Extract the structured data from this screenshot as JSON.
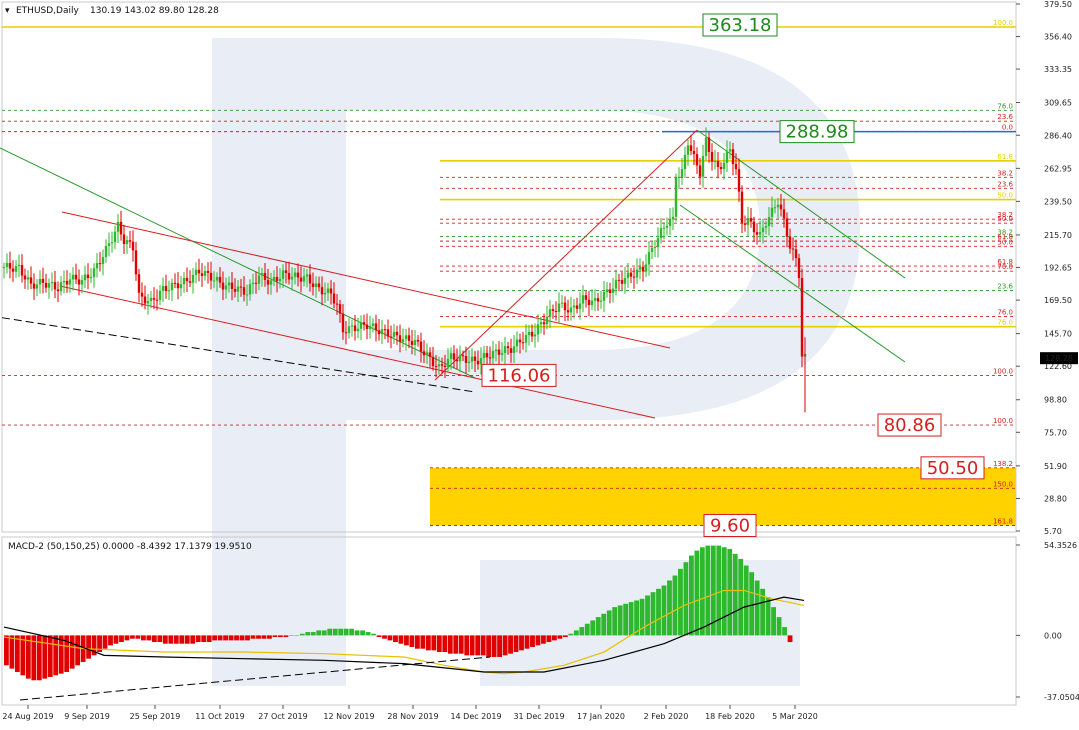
{
  "header": {
    "symbol": "ETHUSD,Daily",
    "ohlc": "130.19 143.02 89.80 128.28"
  },
  "macd_header": "MACD-2 (50,150,25) 0.0000 -8.4392 17.1379 19.9510",
  "current_price": "128.28",
  "colors": {
    "bull": "#2db82d",
    "bear": "#e00000",
    "fib_red": "#d42020",
    "fib_green": "#2a9a2a",
    "fib_yellow": "#e6d000",
    "target_box_fill": "#ffd200",
    "hline_blue": "#1a6fd1",
    "macd_signal": "#e8c000",
    "macd_line": "#000000",
    "watermark": "#e8edf6"
  },
  "chart_data": [
    {
      "type": "candlestick",
      "title": "",
      "y_axis": {
        "min": 5.7,
        "max": 379.5,
        "ticks": [
          "379.50",
          "356.40",
          "333.35",
          "309.65",
          "286.40",
          "262.95",
          "239.50",
          "215.70",
          "192.65",
          "169.50",
          "145.70",
          "122.60",
          "98.80",
          "75.70",
          "51.90",
          "28.80",
          "5.70"
        ]
      },
      "x_axis": {
        "labels": [
          "24 Aug 2019",
          "9 Sep 2019",
          "25 Sep 2019",
          "11 Oct 2019",
          "27 Oct 2019",
          "12 Nov 2019",
          "28 Nov 2019",
          "14 Dec 2019",
          "31 Dec 2019",
          "17 Jan 2020",
          "2 Feb 2020",
          "18 Feb 2020",
          "5 Mar 2020"
        ]
      },
      "price_path": [
        [
          0,
          193
        ],
        [
          5,
          192
        ],
        [
          9,
          180
        ],
        [
          13,
          182
        ],
        [
          18,
          178
        ],
        [
          22,
          185
        ],
        [
          26,
          183
        ],
        [
          30,
          190
        ],
        [
          34,
          205
        ],
        [
          38,
          222
        ],
        [
          40,
          212
        ],
        [
          43,
          207
        ],
        [
          45,
          172
        ],
        [
          49,
          168
        ],
        [
          53,
          177
        ],
        [
          57,
          180
        ],
        [
          61,
          183
        ],
        [
          65,
          190
        ],
        [
          69,
          186
        ],
        [
          73,
          180
        ],
        [
          77,
          178
        ],
        [
          81,
          175
        ],
        [
          85,
          187
        ],
        [
          89,
          182
        ],
        [
          93,
          188
        ],
        [
          97,
          186
        ],
        [
          101,
          185
        ],
        [
          105,
          177
        ],
        [
          109,
          174
        ],
        [
          111,
          166
        ],
        [
          113,
          148
        ],
        [
          117,
          150
        ],
        [
          121,
          152
        ],
        [
          125,
          148
        ],
        [
          129,
          145
        ],
        [
          133,
          142
        ],
        [
          137,
          140
        ],
        [
          141,
          130
        ],
        [
          145,
          121
        ],
        [
          149,
          129
        ],
        [
          153,
          128
        ],
        [
          157,
          126
        ],
        [
          161,
          130
        ],
        [
          165,
          133
        ],
        [
          169,
          135
        ],
        [
          173,
          142
        ],
        [
          177,
          147
        ],
        [
          181,
          158
        ],
        [
          185,
          166
        ],
        [
          189,
          162
        ],
        [
          193,
          170
        ],
        [
          197,
          168
        ],
        [
          201,
          175
        ],
        [
          205,
          183
        ],
        [
          209,
          187
        ],
        [
          213,
          192
        ],
        [
          217,
          210
        ],
        [
          221,
          225
        ],
        [
          223,
          226
        ],
        [
          224,
          258
        ],
        [
          226,
          260
        ],
        [
          228,
          282
        ],
        [
          230,
          270
        ],
        [
          232,
          260
        ],
        [
          234,
          282
        ],
        [
          236,
          270
        ],
        [
          238,
          262
        ],
        [
          240,
          268
        ],
        [
          242,
          276
        ],
        [
          244,
          262
        ],
        [
          246,
          225
        ],
        [
          248,
          226
        ],
        [
          250,
          220
        ],
        [
          252,
          215
        ],
        [
          254,
          225
        ],
        [
          256,
          232
        ],
        [
          258,
          240
        ],
        [
          260,
          225
        ],
        [
          262,
          208
        ],
        [
          264,
          198
        ],
        [
          265,
          188
        ],
        [
          266,
          130
        ],
        [
          267,
          128.28
        ]
      ],
      "annotated_prices": [
        {
          "label": "363.18",
          "color": "#1e8a1e"
        },
        {
          "label": "288.98",
          "color": "#1e8a1e"
        },
        {
          "label": "116.06",
          "color": "#d42020"
        },
        {
          "label": "80.86",
          "color": "#d42020"
        },
        {
          "label": "50.50",
          "color": "#d42020"
        },
        {
          "label": "9.60",
          "color": "#d42020"
        }
      ],
      "fibonacci_levels": [
        {
          "label": "100.0",
          "price": 363.18,
          "color": "#e6d000",
          "style": "solid"
        },
        {
          "label": "76.0",
          "price": 304.1,
          "color": "#2a9a2a",
          "style": "dashed"
        },
        {
          "label": "23.6",
          "price": 296.4,
          "color": "#d42020",
          "style": "dashed"
        },
        {
          "label": "0.0",
          "price": 288.98,
          "color": "#d42020",
          "style": "dashed"
        },
        {
          "label": "61.8",
          "price": 268.3,
          "color": "#e6d000",
          "style": "solid"
        },
        {
          "label": "38.2",
          "price": 256.6,
          "color": "#d42020",
          "style": "dashed"
        },
        {
          "label": "23.6",
          "price": 248.8,
          "color": "#d42020",
          "style": "dashed"
        },
        {
          "label": "50.0",
          "price": 240.8,
          "color": "#e6d000",
          "style": "solid"
        },
        {
          "label": "38.2",
          "price": 226.9,
          "color": "#d42020",
          "style": "dashed"
        },
        {
          "label": "50.0",
          "price": 224.0,
          "color": "#d42020",
          "style": "dashed"
        },
        {
          "label": "38.2",
          "price": 214.5,
          "color": "#2a9a2a",
          "style": "dashed"
        },
        {
          "label": "61.8",
          "price": 211.3,
          "color": "#d42020",
          "style": "dashed"
        },
        {
          "label": "50.0",
          "price": 207.6,
          "color": "#d42020",
          "style": "dashed"
        },
        {
          "label": "61.8",
          "price": 193.6,
          "color": "#d42020",
          "style": "dashed"
        },
        {
          "label": "76.0",
          "price": 190.0,
          "color": "#d42020",
          "style": "dashed"
        },
        {
          "label": "23.6",
          "price": 176.2,
          "color": "#2a9a2a",
          "style": "dashed"
        },
        {
          "label": "76.0",
          "price": 157.9,
          "color": "#d42020",
          "style": "dashed"
        },
        {
          "label": "76.0",
          "price": 150.6,
          "color": "#e6d000",
          "style": "solid"
        },
        {
          "label": "100.0",
          "price": 116.06,
          "color": "#d42020",
          "style": "dashed"
        },
        {
          "label": "100.0",
          "price": 80.86,
          "color": "#d42020",
          "style": "dashed"
        },
        {
          "label": "138.2",
          "price": 50.5,
          "color": "#d42020",
          "style": "dashed"
        },
        {
          "label": "150.0",
          "price": 36.0,
          "color": "#d42020",
          "style": "dashed"
        },
        {
          "label": "161.8",
          "price": 9.6,
          "color": "#d42020",
          "style": "dashed"
        }
      ],
      "target_zone": {
        "from": 9.6,
        "to": 50.5
      }
    },
    {
      "type": "bar",
      "title": "MACD-2 (50,150,25)",
      "y_axis": {
        "min": -37.0504,
        "max": 54.3526,
        "ticks": [
          "54.3526",
          "0.00",
          "-37.0504"
        ]
      },
      "histogram": [
        -18,
        -20,
        -22,
        -24,
        -26,
        -27,
        -27,
        -26,
        -25,
        -24,
        -23,
        -22,
        -20,
        -18,
        -16,
        -14,
        -12,
        -10,
        -8,
        -6,
        -5,
        -4,
        -3,
        -2,
        -2,
        -3,
        -3,
        -4,
        -4,
        -5,
        -5,
        -5,
        -5,
        -5,
        -5,
        -4,
        -4,
        -4,
        -3,
        -3,
        -3,
        -3,
        -3,
        -3,
        -3,
        -2,
        -2,
        -2,
        -2,
        -1,
        -1,
        -1,
        0,
        0,
        1,
        2,
        2,
        3,
        3,
        4,
        4,
        4,
        4,
        4,
        3,
        3,
        2,
        1,
        -1,
        -2,
        -3,
        -4,
        -5,
        -6,
        -7,
        -8,
        -8,
        -9,
        -9,
        -10,
        -10,
        -11,
        -11,
        -11,
        -12,
        -12,
        -12,
        -12,
        -13,
        -13,
        -13,
        -12,
        -11,
        -10,
        -9,
        -8,
        -7,
        -6,
        -5,
        -4,
        -3,
        -2,
        -1,
        1,
        3,
        5,
        7,
        9,
        11,
        13,
        15,
        17,
        18,
        19,
        20,
        21,
        22,
        24,
        26,
        28,
        30,
        33,
        36,
        40,
        44,
        48,
        51,
        53,
        54,
        54,
        54,
        53,
        52,
        49,
        46,
        42,
        38,
        33,
        28,
        23,
        17,
        11,
        5,
        -4
      ],
      "signal_line": [
        [
          0,
          -1
        ],
        [
          20,
          -8
        ],
        [
          40,
          -10
        ],
        [
          60,
          -10
        ],
        [
          80,
          -11
        ],
        [
          100,
          -13
        ],
        [
          110,
          -18
        ],
        [
          120,
          -22
        ],
        [
          125,
          -23
        ],
        [
          130,
          -22
        ],
        [
          140,
          -18
        ],
        [
          150,
          -10
        ],
        [
          160,
          5
        ],
        [
          170,
          18
        ],
        [
          180,
          27
        ],
        [
          185,
          27
        ],
        [
          192,
          22
        ],
        [
          200,
          18
        ]
      ],
      "macd_line": [
        [
          0,
          5
        ],
        [
          15,
          -3
        ],
        [
          25,
          -12
        ],
        [
          40,
          -13
        ],
        [
          60,
          -14
        ],
        [
          80,
          -15
        ],
        [
          100,
          -17
        ],
        [
          120,
          -22
        ],
        [
          135,
          -22
        ],
        [
          150,
          -15
        ],
        [
          165,
          -5
        ],
        [
          175,
          5
        ],
        [
          185,
          17
        ],
        [
          195,
          23
        ],
        [
          200,
          21
        ]
      ]
    }
  ]
}
